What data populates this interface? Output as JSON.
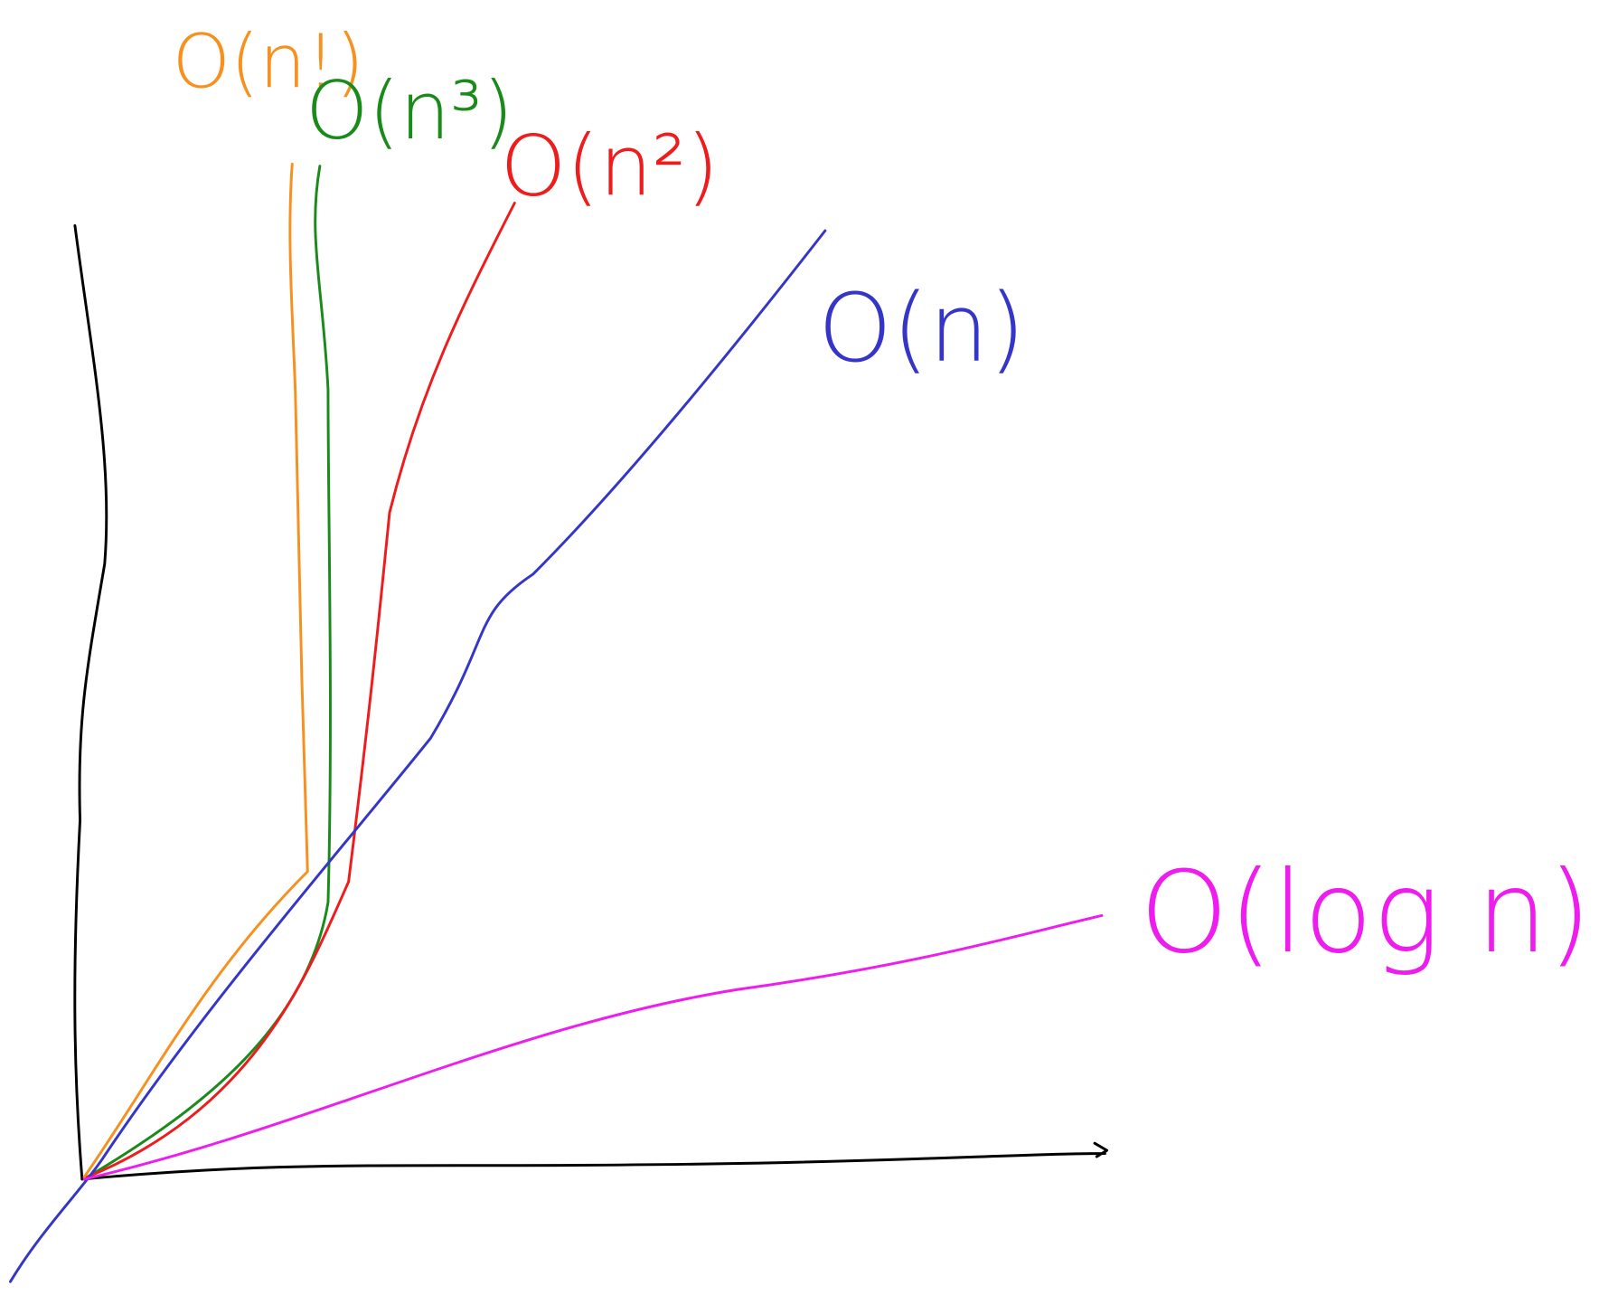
{
  "curves": [
    {
      "label": "O(n!)",
      "color": "#f7901e"
    },
    {
      "label": "O(n³)",
      "color": "#1a8a1a"
    },
    {
      "label": "O(n²)",
      "color": "#ee1c1c"
    },
    {
      "label": "O(n)",
      "color": "#3535c8"
    },
    {
      "label": "O(log n)",
      "color": "#ee1cee"
    }
  ]
}
